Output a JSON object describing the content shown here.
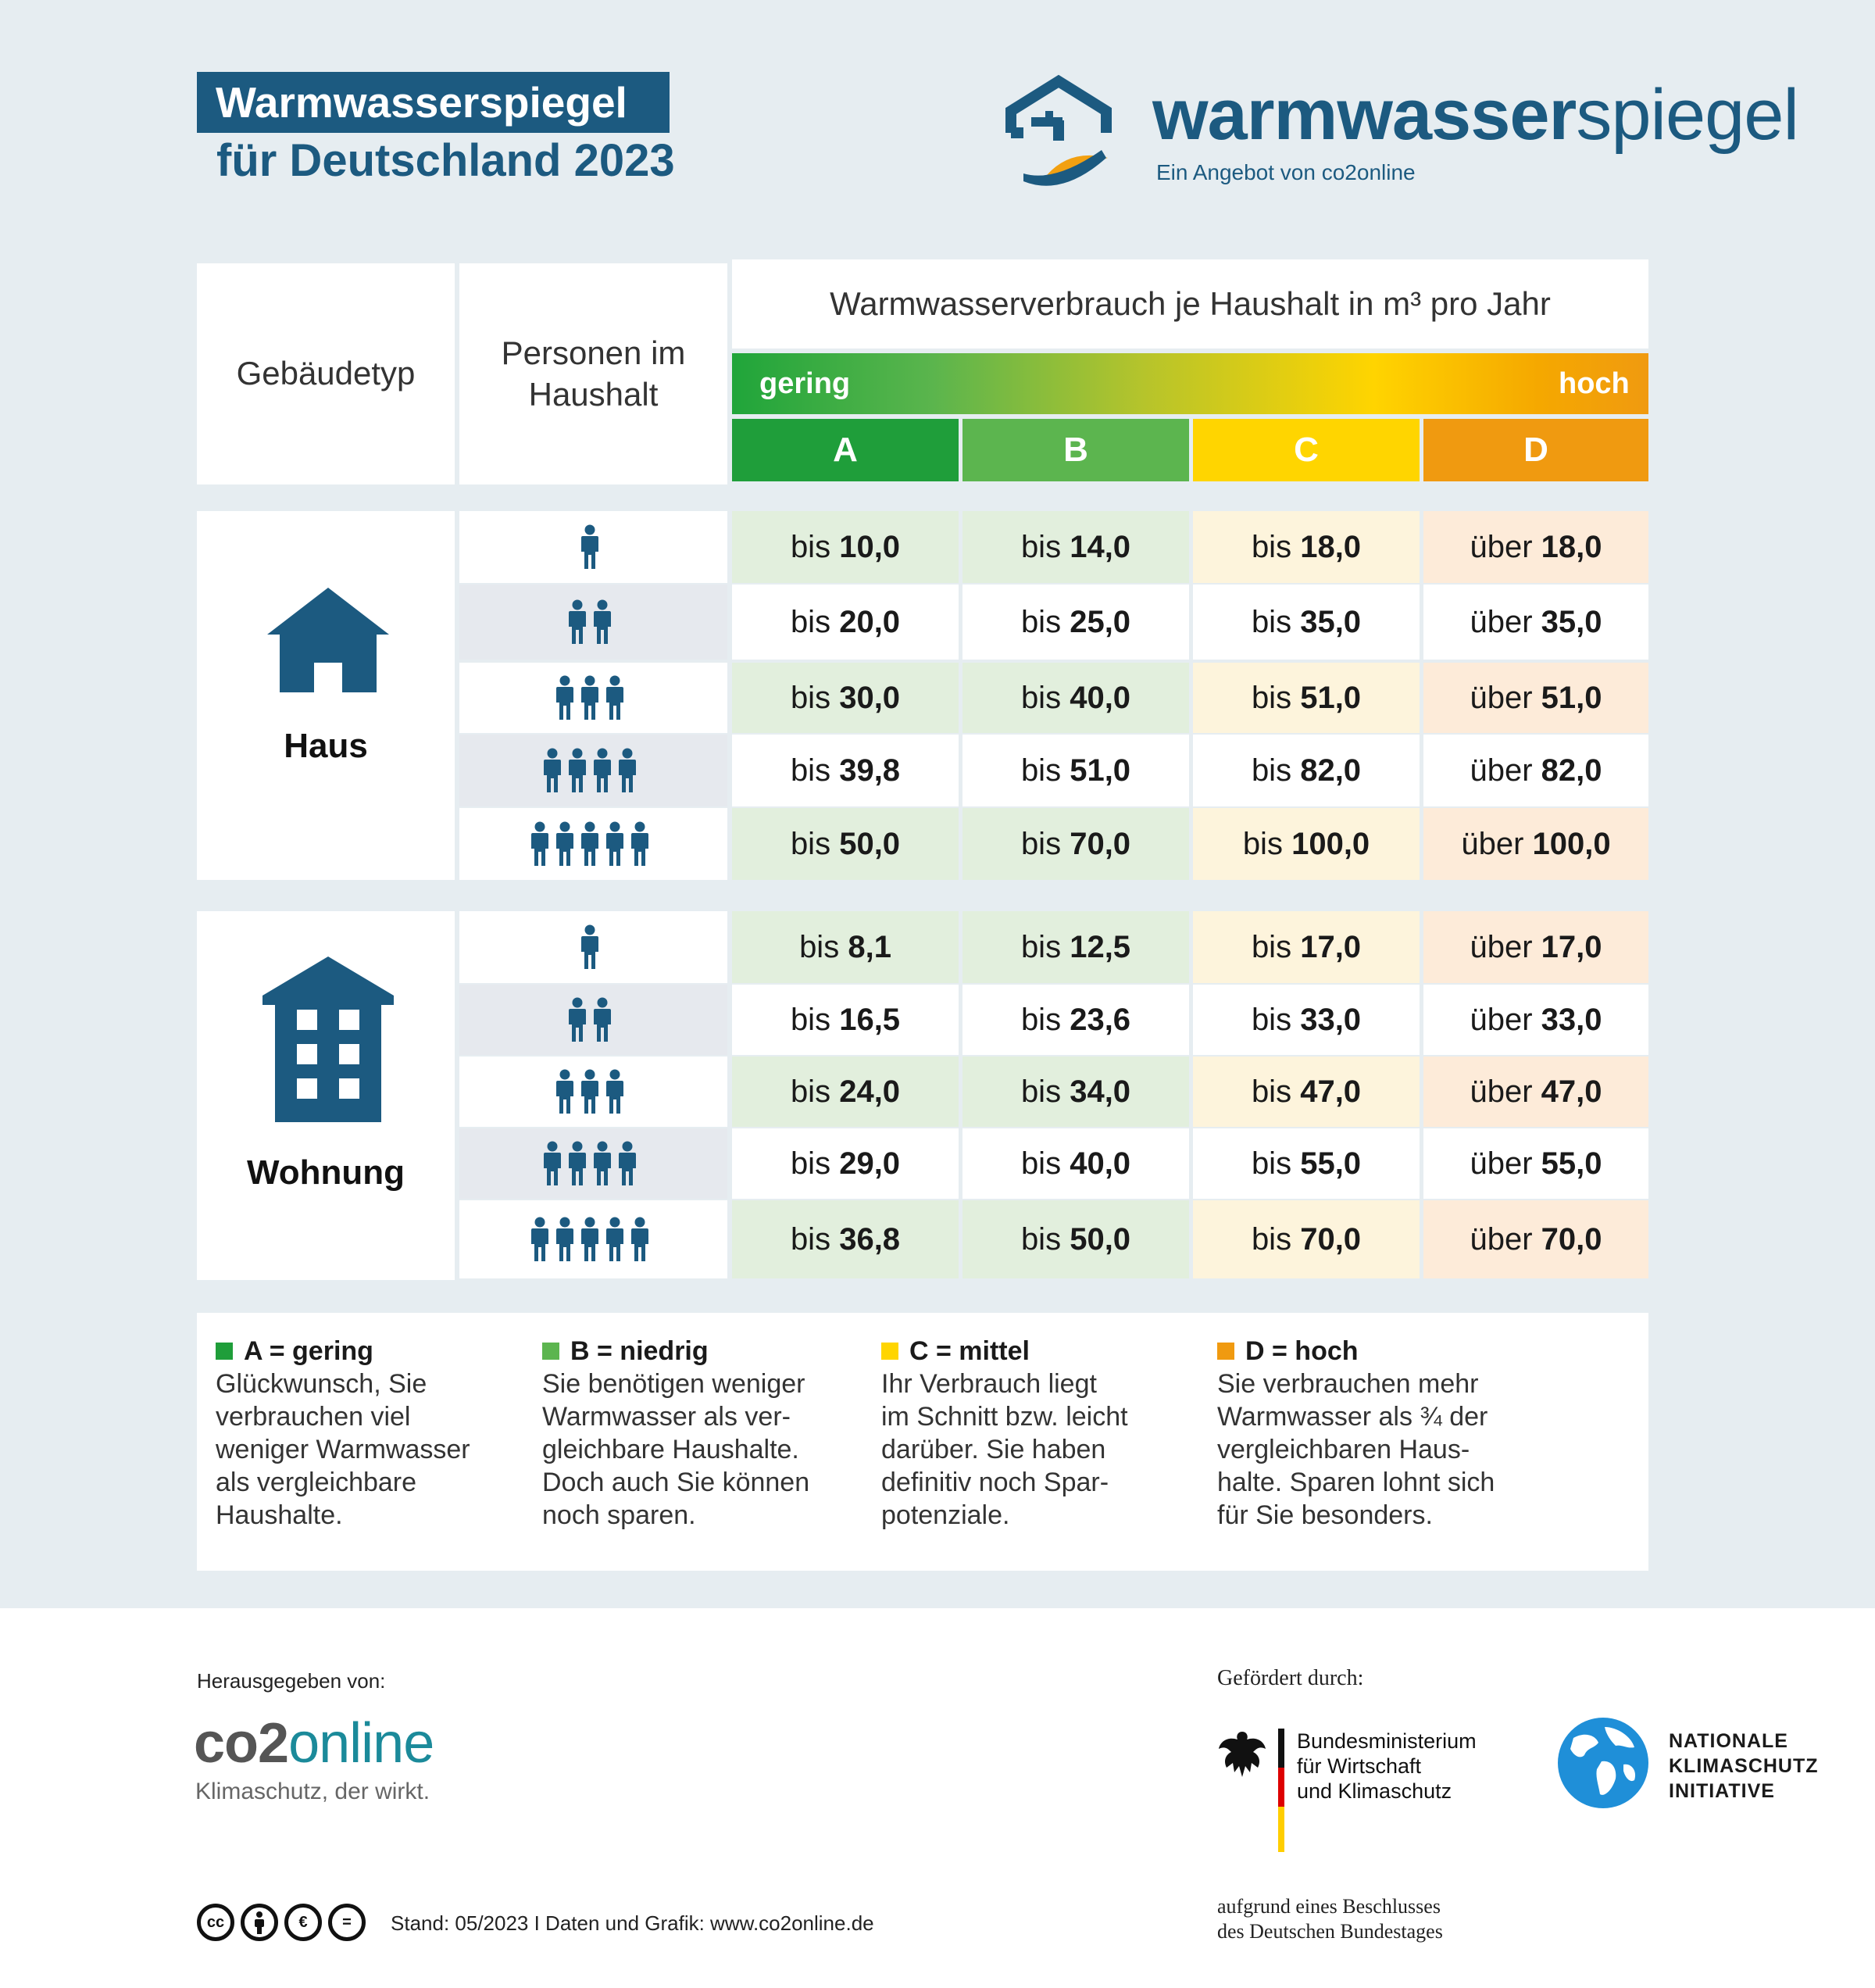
{
  "header": {
    "title": "Warmwasserspiegel",
    "subtitle": "für Deutschland 2023",
    "brand_bold": "warmwasser",
    "brand_light": "spiegel",
    "brand_sub": "Ein Angebot von co2online"
  },
  "table": {
    "col_building": "Gebäudetyp",
    "col_persons": "Personen im Haushalt",
    "col_consumption": "Warmwasserverbrauch je Haushalt in m³ pro Jahr",
    "scale_low": "gering",
    "scale_high": "hoch",
    "classes": [
      "A",
      "B",
      "C",
      "D"
    ],
    "class_colors": [
      "#1f9e3a",
      "#5cb54f",
      "#ffd500",
      "#f09a10"
    ],
    "haus": {
      "label": "Haus",
      "rows": [
        [
          [
            "bis",
            "10,0"
          ],
          [
            "bis",
            "14,0"
          ],
          [
            "bis",
            "18,0"
          ],
          [
            "über",
            "18,0"
          ]
        ],
        [
          [
            "bis",
            "20,0"
          ],
          [
            "bis",
            "25,0"
          ],
          [
            "bis",
            "35,0"
          ],
          [
            "über",
            "35,0"
          ]
        ],
        [
          [
            "bis",
            "30,0"
          ],
          [
            "bis",
            "40,0"
          ],
          [
            "bis",
            "51,0"
          ],
          [
            "über",
            "51,0"
          ]
        ],
        [
          [
            "bis",
            "39,8"
          ],
          [
            "bis",
            "51,0"
          ],
          [
            "bis",
            "82,0"
          ],
          [
            "über",
            "82,0"
          ]
        ],
        [
          [
            "bis",
            "50,0"
          ],
          [
            "bis",
            "70,0"
          ],
          [
            "bis",
            "100,0"
          ],
          [
            "über",
            "100,0"
          ]
        ]
      ]
    },
    "wohnung": {
      "label": "Wohnung",
      "rows": [
        [
          [
            "bis",
            "8,1"
          ],
          [
            "bis",
            "12,5"
          ],
          [
            "bis",
            "17,0"
          ],
          [
            "über",
            "17,0"
          ]
        ],
        [
          [
            "bis",
            "16,5"
          ],
          [
            "bis",
            "23,6"
          ],
          [
            "bis",
            "33,0"
          ],
          [
            "über",
            "33,0"
          ]
        ],
        [
          [
            "bis",
            "24,0"
          ],
          [
            "bis",
            "34,0"
          ],
          [
            "bis",
            "47,0"
          ],
          [
            "über",
            "47,0"
          ]
        ],
        [
          [
            "bis",
            "29,0"
          ],
          [
            "bis",
            "40,0"
          ],
          [
            "bis",
            "55,0"
          ],
          [
            "über",
            "55,0"
          ]
        ],
        [
          [
            "bis",
            "36,8"
          ],
          [
            "bis",
            "50,0"
          ],
          [
            "bis",
            "70,0"
          ],
          [
            "über",
            "70,0"
          ]
        ]
      ]
    }
  },
  "legend": [
    {
      "title": "A = gering",
      "color": "#1f9e3a",
      "lines": [
        "Glückwunsch, Sie",
        "verbrauchen viel",
        "weniger Warmwasser",
        "als vergleichbare",
        "Haushalte."
      ]
    },
    {
      "title": "B = niedrig",
      "color": "#5cb54f",
      "lines": [
        "Sie benötigen weniger",
        "Warmwasser als ver-",
        "gleichbare Haushalte.",
        "Doch auch Sie können",
        "noch sparen."
      ]
    },
    {
      "title": "C = mittel",
      "color": "#ffd500",
      "lines": [
        "Ihr Verbrauch liegt",
        "im Schnitt bzw. leicht",
        "darüber. Sie haben",
        "definitiv noch Spar-",
        "potenziale."
      ]
    },
    {
      "title": "D = hoch",
      "color": "#f09a10",
      "lines": [
        "Sie verbrauchen mehr",
        "Warmwasser als ¾ der",
        "vergleichbaren Haus-",
        "halte. Sparen lohnt sich",
        "für Sie besonders."
      ]
    }
  ],
  "footer": {
    "published_by": "Herausgegeben von:",
    "co2_a": "co2",
    "co2_b": "online",
    "co2_tag": "Klimaschutz, der wirkt.",
    "funded_by": "Gefördert durch:",
    "bmwk_lines": [
      "Bundesministerium",
      "für Wirtschaft",
      "und Klimaschutz"
    ],
    "nki_lines": [
      "NATIONALE",
      "KLIMASCHUTZ",
      "INITIATIVE"
    ],
    "resolution_lines": [
      "aufgrund eines Beschlusses",
      "des Deutschen Bundestages"
    ],
    "stand": "Stand: 05/2023 I Daten und Grafik: www.co2online.de",
    "cc_icons": [
      "cc",
      "by",
      "nc",
      "nd"
    ]
  }
}
